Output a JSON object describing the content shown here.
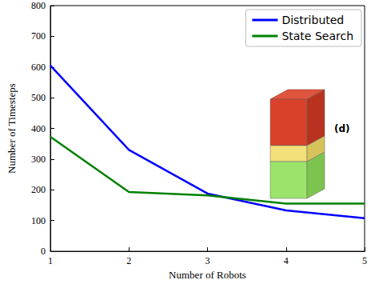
{
  "chart_data": {
    "type": "line",
    "x": [
      1,
      2,
      3,
      4,
      5
    ],
    "series": [
      {
        "name": "Distributed",
        "color": "#0000ff",
        "values": [
          605,
          330,
          188,
          133,
          108
        ]
      },
      {
        "name": "State Search",
        "color": "#008000",
        "values": [
          373,
          193,
          182,
          155,
          155
        ]
      }
    ],
    "xlabel": "Number of Robots",
    "ylabel": "Number of Timesteps",
    "xlim": [
      1,
      5
    ],
    "xticks": [
      1,
      2,
      3,
      4,
      5
    ],
    "ylim": [
      0,
      800
    ],
    "yticks": [
      0,
      100,
      200,
      300,
      400,
      500,
      600,
      700,
      800
    ],
    "grid": false,
    "legend": "upper right",
    "annotation": "(d)"
  }
}
